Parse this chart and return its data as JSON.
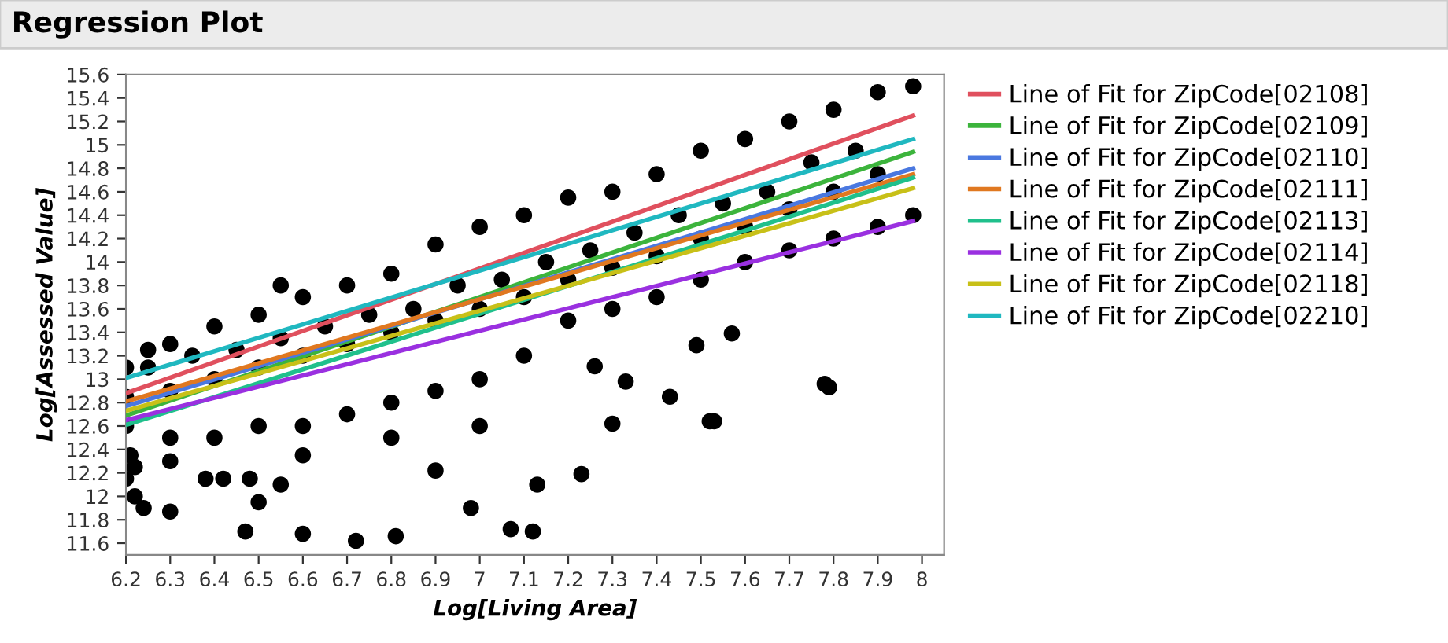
{
  "chart_data": {
    "type": "scatter",
    "title": "Regression Plot",
    "xlabel": "Log[Living Area]",
    "ylabel": "Log[Assessed Value]",
    "xlim": [
      6.2,
      8.05
    ],
    "ylim": [
      11.5,
      15.6
    ],
    "xticks": [
      6.2,
      6.3,
      6.4,
      6.5,
      6.6,
      6.7,
      6.8,
      6.9,
      7,
      7.1,
      7.2,
      7.3,
      7.4,
      7.5,
      7.6,
      7.7,
      7.8,
      7.9,
      8
    ],
    "yticks": [
      11.6,
      11.8,
      12,
      12.2,
      12.4,
      12.6,
      12.8,
      13,
      13.2,
      13.4,
      13.6,
      13.8,
      14,
      14.2,
      14.4,
      14.6,
      14.8,
      15,
      15.2,
      15.4,
      15.6
    ],
    "grid": false,
    "legend": "right",
    "series": [
      {
        "marker": "circle",
        "color": "#000000",
        "x": [
          6.2,
          6.25,
          6.3,
          6.4,
          6.5,
          6.55,
          6.6,
          6.7,
          6.8,
          6.9,
          7.0,
          7.1,
          7.2,
          7.3,
          7.4,
          7.5,
          7.6,
          7.7,
          7.8,
          7.9,
          7.98,
          6.2,
          6.3,
          6.4,
          6.5,
          6.6,
          6.7,
          6.8,
          6.9,
          7.0,
          7.1,
          7.2,
          7.3,
          7.4,
          7.5,
          7.6,
          7.7,
          7.8,
          7.9,
          7.98,
          6.2,
          6.3,
          6.4,
          6.5,
          6.6,
          6.7,
          6.8,
          6.9,
          7.0,
          7.1,
          7.2,
          7.3,
          7.4,
          7.5,
          7.6,
          7.7,
          7.8,
          7.9,
          6.25,
          6.35,
          6.45,
          6.55,
          6.65,
          6.75,
          6.85,
          6.95,
          7.05,
          7.15,
          7.25,
          7.35,
          7.45,
          7.55,
          7.65,
          7.75,
          7.85,
          6.21,
          6.22,
          6.2,
          6.22,
          6.24,
          6.3,
          6.3,
          6.38,
          6.42,
          6.47,
          6.48,
          6.5,
          6.55,
          6.6,
          6.72,
          6.81,
          6.9,
          6.98,
          7.07,
          7.12,
          7.13,
          7.23,
          7.26,
          7.33,
          7.3,
          7.43,
          7.52,
          7.53,
          7.78,
          7.79,
          7.49,
          7.57,
          7.0,
          6.8,
          6.6
        ],
        "values": [
          13.1,
          13.25,
          13.3,
          13.45,
          13.55,
          13.8,
          13.7,
          13.8,
          13.9,
          14.15,
          14.3,
          14.4,
          14.55,
          14.6,
          14.75,
          14.95,
          15.05,
          15.2,
          15.3,
          15.45,
          15.5,
          12.6,
          12.5,
          12.5,
          12.6,
          12.6,
          12.7,
          12.8,
          12.9,
          13.0,
          13.2,
          13.5,
          13.6,
          13.7,
          13.85,
          14.0,
          14.1,
          14.2,
          14.3,
          14.4,
          12.85,
          12.9,
          13.0,
          13.1,
          13.2,
          13.3,
          13.4,
          13.5,
          13.6,
          13.7,
          13.85,
          13.95,
          14.05,
          14.2,
          14.3,
          14.45,
          14.6,
          14.75,
          13.1,
          13.2,
          13.25,
          13.35,
          13.45,
          13.55,
          13.6,
          13.8,
          13.85,
          14.0,
          14.1,
          14.25,
          14.4,
          14.5,
          14.6,
          14.85,
          14.95,
          12.35,
          12.25,
          12.15,
          12.0,
          11.9,
          11.87,
          12.3,
          12.15,
          12.15,
          11.7,
          12.15,
          11.95,
          12.1,
          11.68,
          11.62,
          11.66,
          12.22,
          11.9,
          11.72,
          11.7,
          12.1,
          12.19,
          13.11,
          12.98,
          12.62,
          12.85,
          12.64,
          12.64,
          12.96,
          12.93,
          13.29,
          13.39,
          12.6,
          12.5,
          12.35
        ]
      },
      {
        "type": "line",
        "name": "Line of Fit for ZipCode[02108]",
        "color": "#e0505e",
        "x": [
          6.2,
          7.98
        ],
        "values": [
          12.88,
          15.25
        ]
      },
      {
        "type": "line",
        "name": "Line of Fit for ZipCode[02109]",
        "color": "#3cb43c",
        "x": [
          6.2,
          7.98
        ],
        "values": [
          12.69,
          14.94
        ]
      },
      {
        "type": "line",
        "name": "Line of Fit for ZipCode[02110]",
        "color": "#4a78e0",
        "x": [
          6.2,
          7.98
        ],
        "values": [
          12.77,
          14.8
        ]
      },
      {
        "type": "line",
        "name": "Line of Fit for ZipCode[02111]",
        "color": "#e07820",
        "x": [
          6.2,
          7.98
        ],
        "values": [
          12.81,
          14.75
        ]
      },
      {
        "type": "line",
        "name": "Line of Fit for ZipCode[02113]",
        "color": "#20c08c",
        "x": [
          6.2,
          7.98
        ],
        "values": [
          12.61,
          14.72
        ]
      },
      {
        "type": "line",
        "name": "Line of Fit for ZipCode[02114]",
        "color": "#9a30e0",
        "x": [
          6.2,
          7.98
        ],
        "values": [
          12.65,
          14.35
        ]
      },
      {
        "type": "line",
        "name": "Line of Fit for ZipCode[02118]",
        "color": "#c8c018",
        "x": [
          6.2,
          7.98
        ],
        "values": [
          12.73,
          14.63
        ]
      },
      {
        "type": "line",
        "name": "Line of Fit for ZipCode[02210]",
        "color": "#20b8c0",
        "x": [
          6.2,
          7.98
        ],
        "values": [
          13.01,
          15.05
        ]
      }
    ]
  }
}
